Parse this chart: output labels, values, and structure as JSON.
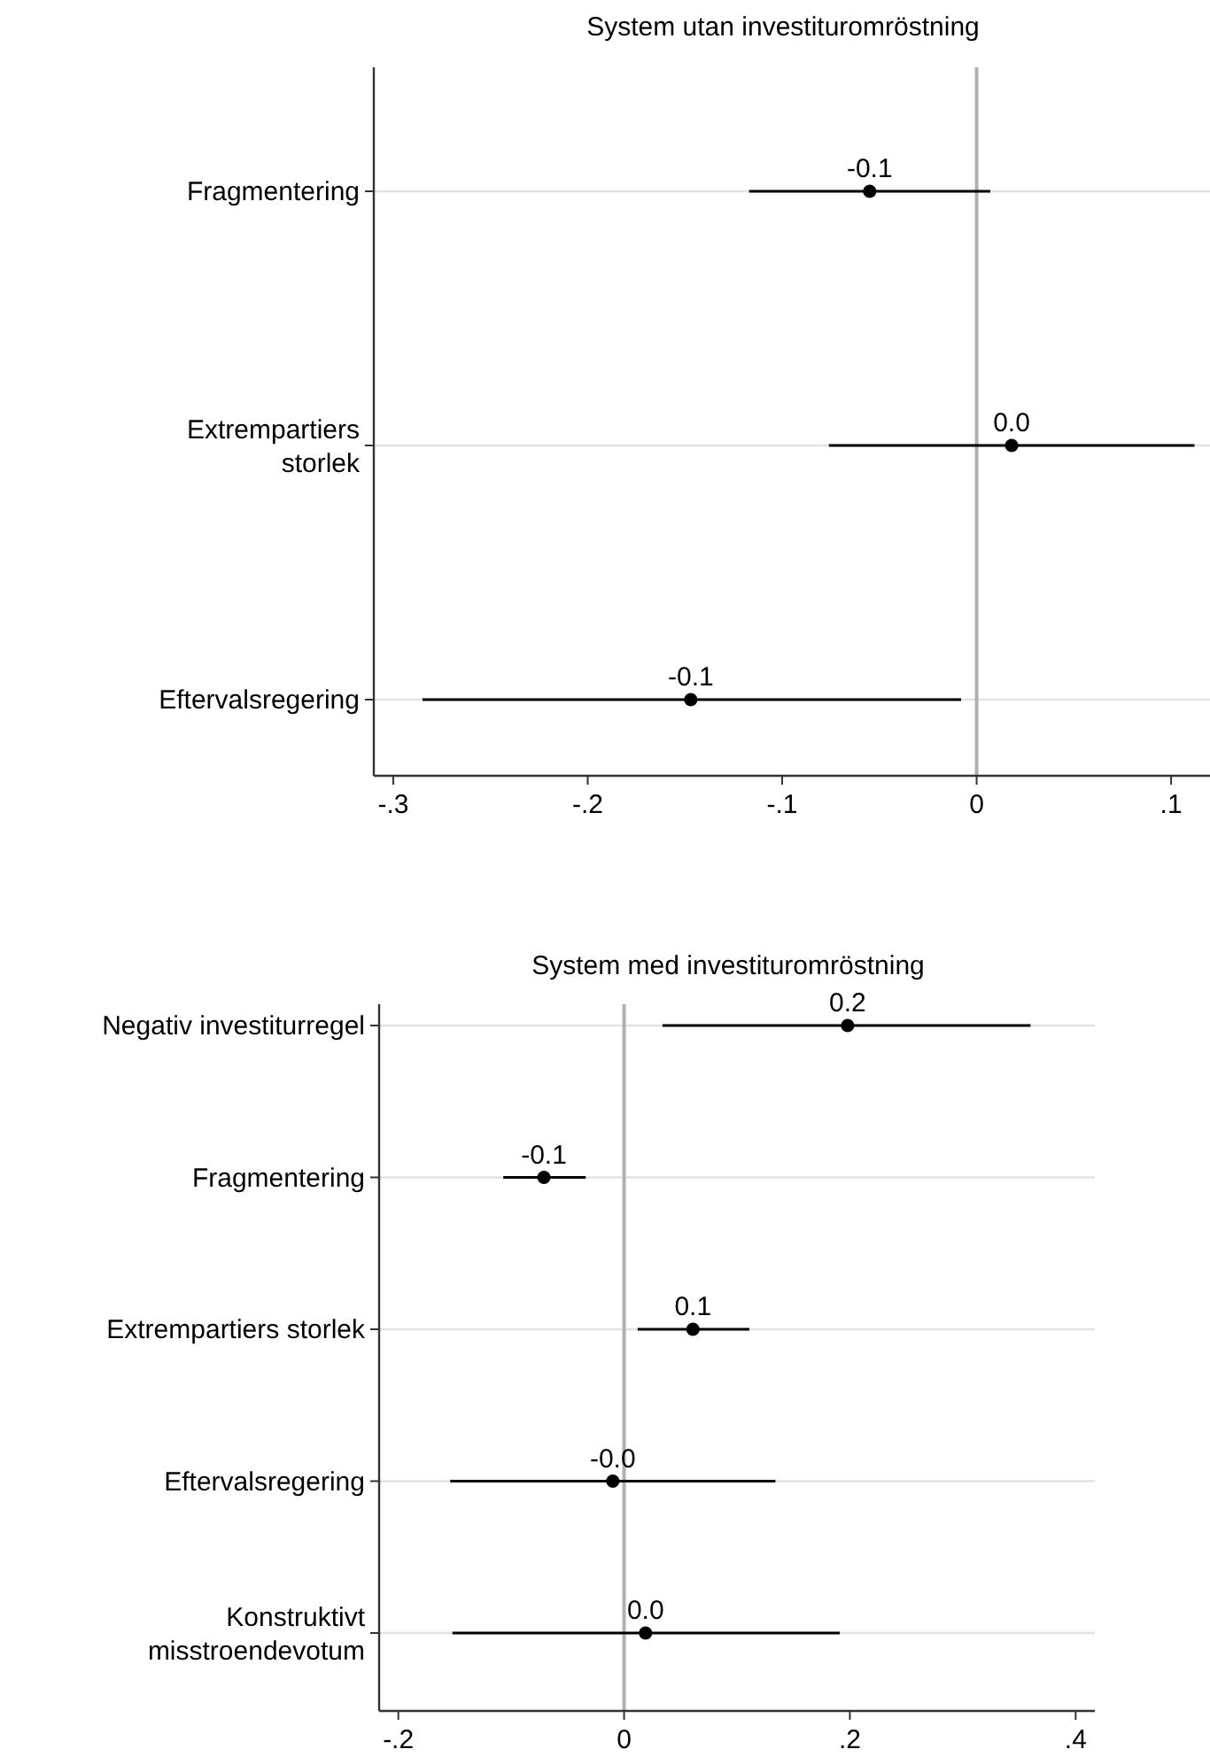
{
  "chart_data": [
    {
      "type": "scatter",
      "title": "System utan investituromröstning",
      "orientation": "horizontal",
      "categories": [
        "Fragmentering",
        "Extrempartiers storlek",
        "Eftervalsregering"
      ],
      "series": [
        {
          "color": "#000000",
          "values": [
            -0.055,
            0.018,
            -0.147
          ],
          "errors": [
            [
              -0.117,
              0.007
            ],
            [
              -0.076,
              0.112
            ],
            [
              -0.285,
              -0.008
            ]
          ],
          "value_labels": [
            "-0.1",
            "0.0",
            "-0.1"
          ]
        }
      ],
      "xlim": [
        -0.31,
        0.12
      ],
      "xticks": [
        {
          "value": -0.3,
          "label": "-.3"
        },
        {
          "value": -0.2,
          "label": "-.2"
        },
        {
          "value": -0.1,
          "label": "-.1"
        },
        0,
        {
          "value": 0.1,
          "label": ".1"
        }
      ],
      "ref_lines": [
        {
          "axis": "x",
          "value": 0,
          "color": "#b0b0b0"
        }
      ],
      "grid": "y",
      "marker": "circle"
    },
    {
      "type": "scatter",
      "title": "System med investituromröstning",
      "orientation": "horizontal",
      "categories": [
        "Negativ investiturregel",
        "Fragmentering",
        "Extrempartiers storlek",
        "Eftervalsregering",
        "Konstruktivt misstroendevotum"
      ],
      "series": [
        {
          "color": "#000000",
          "values": [
            0.198,
            -0.071,
            0.061,
            -0.01,
            0.019
          ],
          "errors": [
            [
              0.034,
              0.36
            ],
            [
              -0.107,
              -0.034
            ],
            [
              0.012,
              0.111
            ],
            [
              -0.154,
              0.134
            ],
            [
              -0.152,
              0.191
            ]
          ],
          "value_labels": [
            "0.2",
            "-0.1",
            "0.1",
            "-0.0",
            "0.0"
          ]
        }
      ],
      "xlim": [
        -0.217,
        0.417
      ],
      "xticks": [
        {
          "value": -0.2,
          "label": "-.2"
        },
        0,
        {
          "value": 0.2,
          "label": ".2"
        },
        {
          "value": 0.4,
          "label": ".4"
        }
      ],
      "ref_lines": [
        {
          "axis": "x",
          "value": 0,
          "color": "#b0b0b0"
        }
      ],
      "grid": "y",
      "marker": "circle"
    }
  ]
}
